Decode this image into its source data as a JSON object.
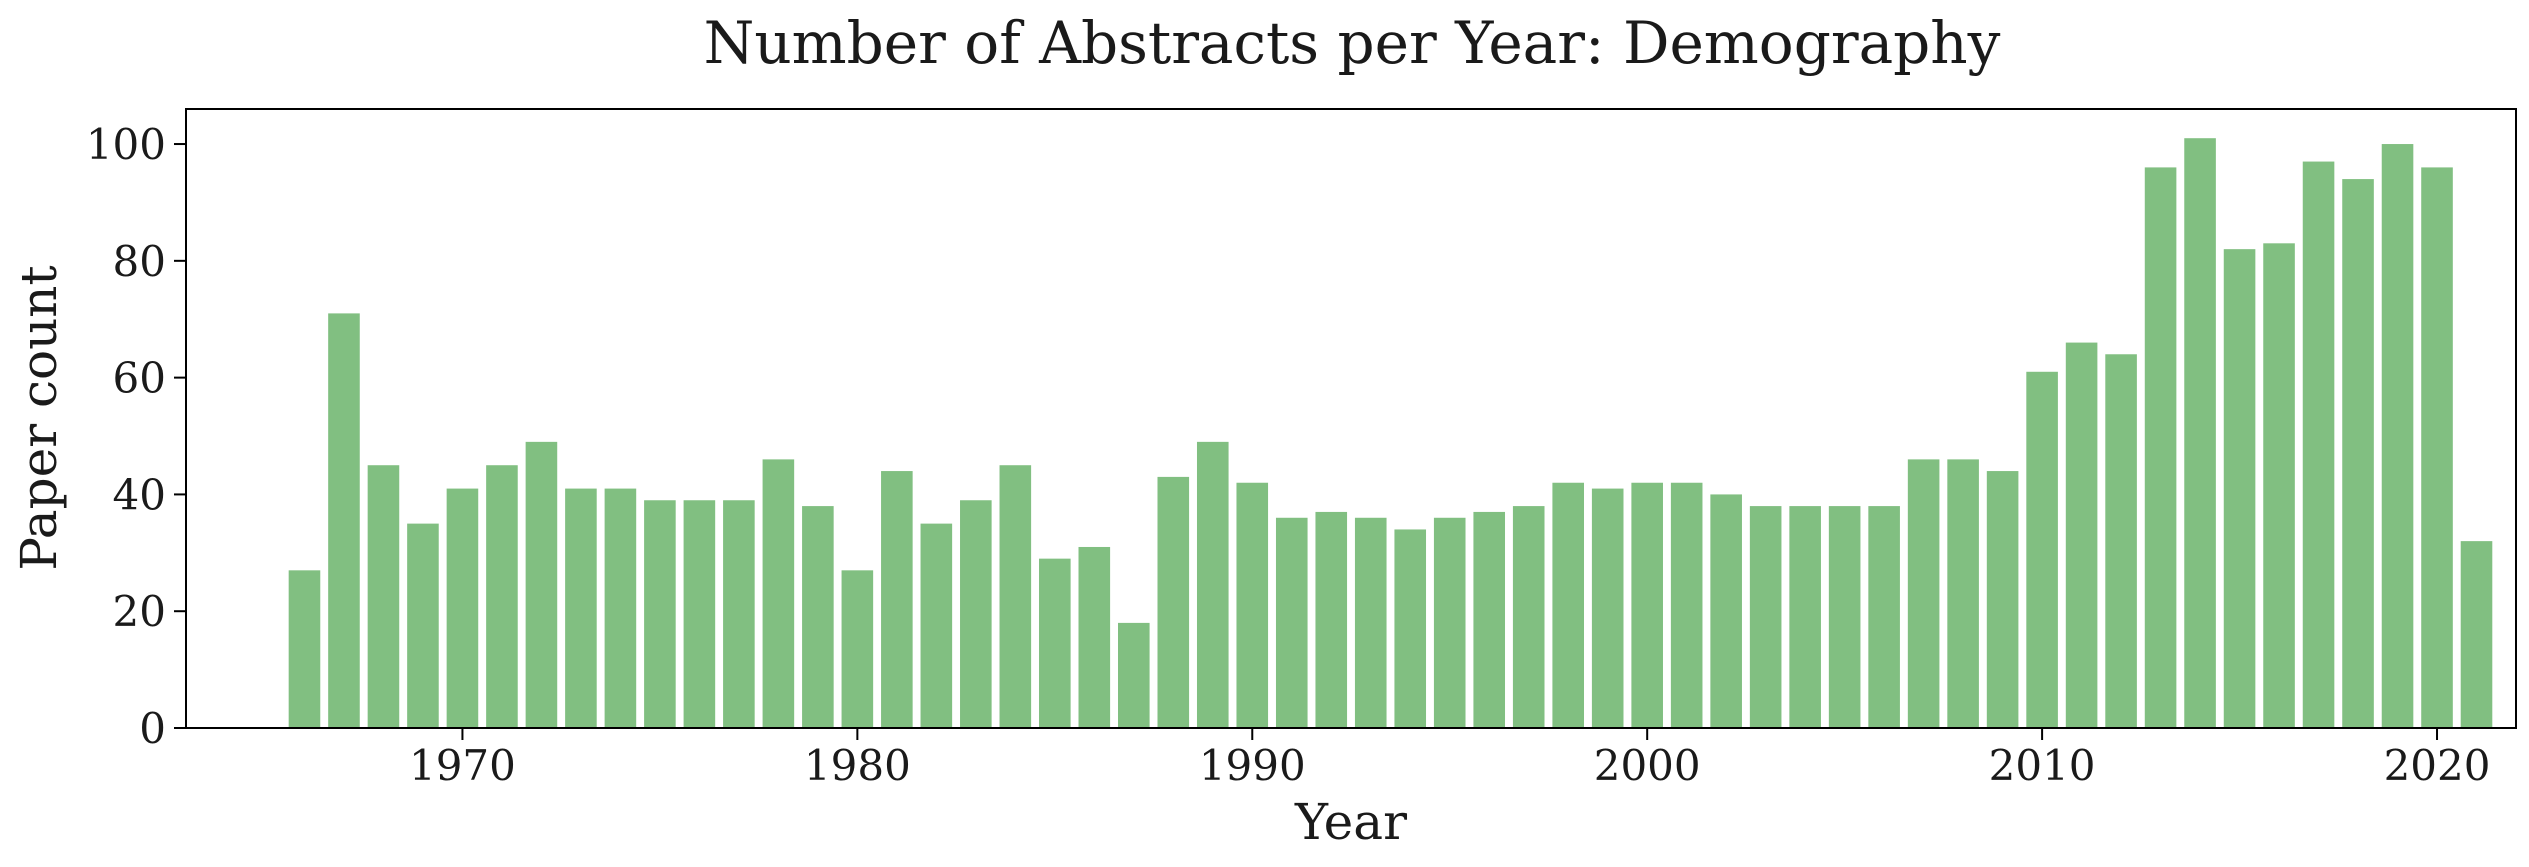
{
  "chart_data": {
    "type": "bar",
    "title": "Number of Abstracts per Year: Demography",
    "xlabel": "Year",
    "ylabel": "Paper count",
    "bar_color": "#81bf81",
    "grid": false,
    "xlim": [
      1963,
      2022
    ],
    "ylim": [
      0,
      106
    ],
    "x_ticks": [
      1970,
      1980,
      1990,
      2000,
      2010,
      2020
    ],
    "x_tick_labels": [
      "1970",
      "1980",
      "1990",
      "2000",
      "2010",
      "2020"
    ],
    "y_ticks": [
      0,
      20,
      40,
      60,
      80,
      100
    ],
    "y_tick_labels": [
      "0",
      "20",
      "40",
      "60",
      "80",
      "100"
    ],
    "x": [
      1966,
      1967,
      1968,
      1969,
      1970,
      1971,
      1972,
      1973,
      1974,
      1975,
      1976,
      1977,
      1978,
      1979,
      1980,
      1981,
      1982,
      1983,
      1984,
      1985,
      1986,
      1987,
      1988,
      1989,
      1990,
      1991,
      1992,
      1993,
      1994,
      1995,
      1996,
      1997,
      1998,
      1999,
      2000,
      2001,
      2002,
      2003,
      2004,
      2005,
      2006,
      2007,
      2008,
      2009,
      2010,
      2011,
      2012,
      2013,
      2014,
      2015,
      2016,
      2017,
      2018,
      2019,
      2020,
      2021
    ],
    "values": [
      27,
      71,
      45,
      35,
      41,
      45,
      49,
      41,
      41,
      39,
      39,
      39,
      46,
      38,
      27,
      44,
      35,
      39,
      45,
      29,
      31,
      18,
      43,
      49,
      42,
      36,
      37,
      36,
      34,
      36,
      37,
      38,
      42,
      41,
      42,
      42,
      40,
      38,
      38,
      38,
      38,
      46,
      46,
      44,
      61,
      66,
      64,
      96,
      101,
      82,
      83,
      97,
      94,
      100,
      96,
      32
    ]
  }
}
